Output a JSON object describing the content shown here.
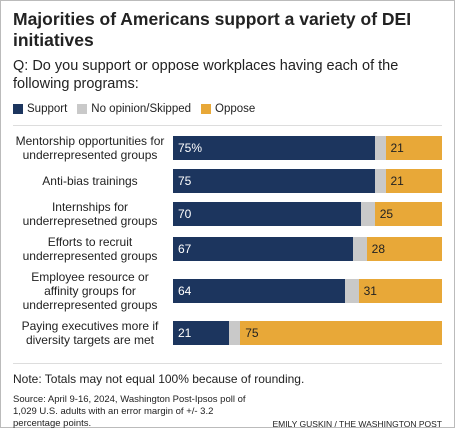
{
  "chart_data": {
    "type": "bar",
    "orientation": "horizontal",
    "stacked": true,
    "title": "Majorities of Americans support a variety of DEI initiatives",
    "subtitle": "Q: Do you support or oppose workplaces having each of the following programs:",
    "categories": [
      "Mentorship opportunities for underrepresented groups",
      "Anti-bias trainings",
      "Internships for underrepresetned groups",
      "Efforts to recruit underrepresented groups",
      "Employee resource or affinity groups for underrepresented groups",
      "Paying executives more if diversity targets are met"
    ],
    "series": [
      {
        "name": "Support",
        "color": "#1c355e",
        "label_color": "#ffffff",
        "values": [
          75,
          75,
          70,
          67,
          64,
          21
        ],
        "value_labels": [
          "75%",
          "75",
          "70",
          "67",
          "64",
          "21"
        ]
      },
      {
        "name": "No opinion/Skipped",
        "color": "#c9c9c9",
        "values": [
          4,
          4,
          5,
          5,
          5,
          4
        ]
      },
      {
        "name": "Oppose",
        "color": "#e8a838",
        "label_color": "#222222",
        "values": [
          21,
          21,
          25,
          28,
          31,
          75
        ]
      }
    ],
    "note": "Note: Totals may not equal 100% because of rounding.",
    "source": "Source: April 9-16, 2024, Washington Post-Ipsos poll of 1,029 U.S. adults with an error margin of +/- 3.2 percentage points.",
    "credit": "EMILY GUSKIN / THE WASHINGTON POST"
  }
}
